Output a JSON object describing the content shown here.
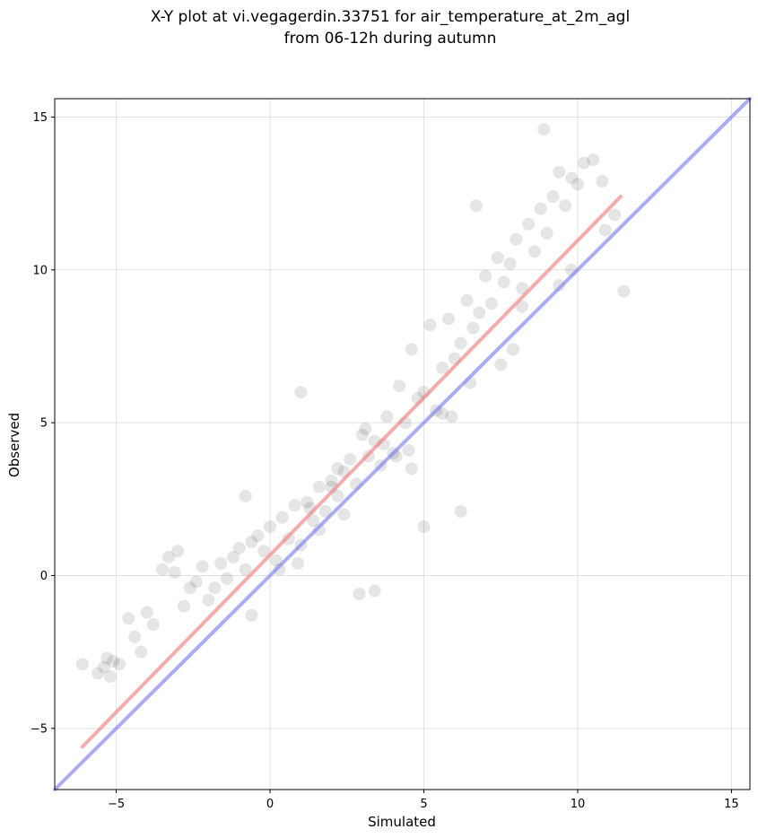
{
  "chart_data": {
    "type": "scatter",
    "title_lines": [
      "X-Y plot at vi.vegagerdin.33751 for air_temperature_at_2m_agl",
      "from 06-12h during autumn"
    ],
    "xlabel": "Simulated",
    "ylabel": "Observed",
    "xlim": [
      -7,
      15.6
    ],
    "ylim": [
      -7,
      15.6
    ],
    "x_ticks": [
      -5,
      0,
      5,
      10,
      15
    ],
    "y_ticks": [
      -5,
      0,
      5,
      10,
      15
    ],
    "x_tick_labels": [
      "−5",
      "0",
      "5",
      "10",
      "15"
    ],
    "y_tick_labels": [
      "−5",
      "0",
      "5",
      "10",
      "15"
    ],
    "grid": true,
    "point_color": "#000000",
    "point_opacity": 0.1,
    "series": [
      {
        "values_x": [
          -6.1,
          -5.6,
          -5.4,
          -5.3,
          -5.2,
          -5.1,
          -4.9,
          -4.6,
          -4.4,
          -4.2,
          -4.0,
          -3.8,
          -3.5,
          -3.3,
          -3.1,
          -3.0,
          -2.8,
          -2.6,
          -2.4,
          -2.2,
          -2.0,
          -1.8,
          -1.6,
          -1.4,
          -1.2,
          -1.0,
          -0.8,
          -0.6,
          -0.4,
          -0.2,
          0.0,
          0.2,
          0.4,
          0.6,
          0.8,
          1.0,
          1.2,
          1.4,
          1.6,
          1.8,
          2.0,
          2.2,
          2.4,
          2.6,
          2.8,
          3.0,
          3.2,
          3.4,
          3.6,
          3.8,
          4.0,
          4.2,
          4.4,
          4.6,
          4.8,
          5.0,
          5.2,
          5.4,
          5.6,
          5.8,
          6.0,
          6.2,
          6.4,
          6.6,
          6.8,
          7.0,
          7.2,
          7.4,
          7.6,
          7.8,
          8.0,
          8.2,
          8.4,
          8.6,
          8.8,
          9.0,
          9.2,
          9.4,
          9.6,
          9.8,
          10.0,
          10.2,
          10.5,
          10.8,
          11.2,
          11.5,
          8.9,
          9.4,
          6.7,
          6.2,
          5.0,
          3.4,
          2.9,
          -0.8,
          -0.6,
          1.0,
          2.2,
          4.5,
          5.6,
          7.5,
          8.2,
          9.8,
          10.9,
          4.1,
          3.7,
          4.6,
          2.4,
          1.6,
          0.9,
          0.3,
          5.9,
          6.5,
          7.9,
          3.1,
          2.0,
          1.3
        ],
        "values_y": [
          -2.9,
          -3.2,
          -3.0,
          -2.7,
          -3.3,
          -2.8,
          -2.9,
          -1.4,
          -2.0,
          -2.5,
          -1.2,
          -1.6,
          0.2,
          0.6,
          0.1,
          0.8,
          -1.0,
          -0.4,
          -0.2,
          0.3,
          -0.8,
          -0.4,
          0.4,
          -0.1,
          0.6,
          0.9,
          0.2,
          1.1,
          1.3,
          0.8,
          1.6,
          0.5,
          1.9,
          1.2,
          2.3,
          1.0,
          2.4,
          1.8,
          2.9,
          2.1,
          3.1,
          2.6,
          3.4,
          3.8,
          3.0,
          4.6,
          3.9,
          4.4,
          3.6,
          5.2,
          4.0,
          6.2,
          5.0,
          7.4,
          5.8,
          6.0,
          8.2,
          5.4,
          6.8,
          8.4,
          7.1,
          7.6,
          9.0,
          8.1,
          8.6,
          9.8,
          8.9,
          10.4,
          9.6,
          10.2,
          11.0,
          9.4,
          11.5,
          10.6,
          12.0,
          11.2,
          12.4,
          13.2,
          12.1,
          13.0,
          12.8,
          13.5,
          13.6,
          12.9,
          11.8,
          9.3,
          14.6,
          9.5,
          12.1,
          2.1,
          1.6,
          -0.5,
          -0.6,
          2.6,
          -1.3,
          6.0,
          3.5,
          4.1,
          5.3,
          6.9,
          8.8,
          10.0,
          11.3,
          3.9,
          4.3,
          3.5,
          2.0,
          1.5,
          0.4,
          0.2,
          5.2,
          6.3,
          7.4,
          4.8,
          2.9,
          2.2
        ],
        "name": ""
      }
    ],
    "lines": [
      {
        "role": "regression",
        "color": "#f08080",
        "x": [
          -6.1,
          11.4
        ],
        "y": [
          -5.6,
          12.4
        ]
      },
      {
        "role": "one-to-one",
        "color": "#8080f0",
        "x": [
          -7.0,
          15.6
        ],
        "y": [
          -7.0,
          15.6
        ]
      }
    ]
  }
}
